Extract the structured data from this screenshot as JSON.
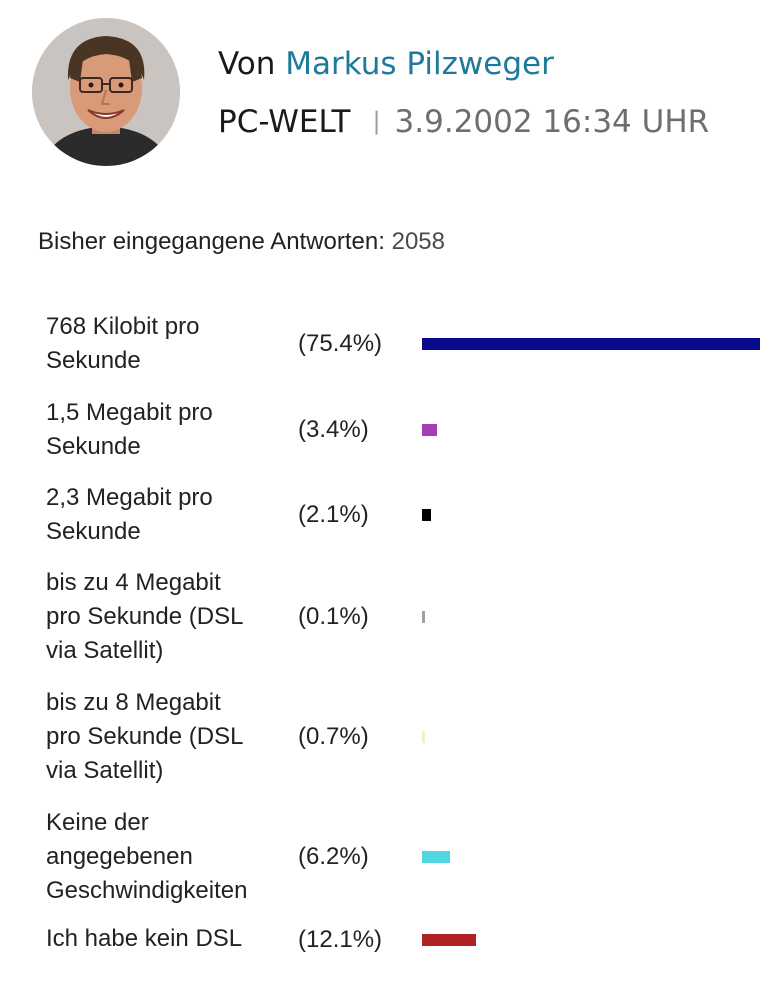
{
  "author": {
    "prefix": "Von",
    "name": "Markus Pilzweger",
    "publisher": "PC-WELT",
    "separator": "|",
    "datetime": "3.9.2002 16:34 UHR"
  },
  "poll": {
    "responses_label": "Bisher eingegangene Antworten:",
    "responses_count": "2058"
  },
  "chart_data": {
    "type": "bar",
    "orientation": "horizontal",
    "categories": [
      "768 Kilobit pro\nSekunde",
      "1,5 Megabit pro\nSekunde",
      "2,3 Megabit pro\nSekunde",
      "bis zu 4 Megabit\npro Sekunde (DSL\nvia Satellit)",
      "bis zu 8 Megabit\npro Sekunde (DSL\nvia Satellit)",
      "Keine der\nangegebenen\nGeschwindigkeiten",
      "Ich habe kein DSL"
    ],
    "values": [
      75.4,
      3.4,
      2.1,
      0.1,
      0.7,
      6.2,
      12.1
    ],
    "value_labels": [
      "(75.4%)",
      "(3.4%)",
      "(2.1%)",
      "(0.1%)",
      "(0.7%)",
      "(6.2%)",
      "(12.1%)"
    ],
    "colors": [
      "#0a0a8c",
      "#a23fb5",
      "#000000",
      "#a0a0a0",
      "#f2f0c8",
      "#4fd6e0",
      "#b32222"
    ],
    "title": "",
    "xlabel": "",
    "ylabel": ""
  }
}
